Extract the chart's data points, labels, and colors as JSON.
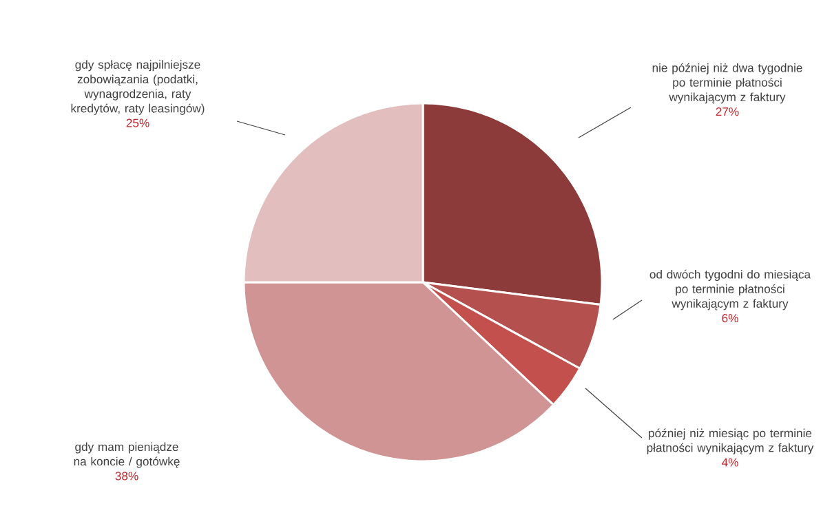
{
  "chart_data": {
    "type": "pie",
    "categories": [
      "nie później niż dwa tygodnie po terminie płatności wynikającym z faktury",
      "od dwóch tygodni do miesiąca po terminie płatności wynikającym z faktury",
      "później niż miesiąc po terminie płatności wynikającym z faktury",
      "gdy mam pieniądze na koncie / gotówkę",
      "gdy spłacę najpilniejsze zobowiązania (podatki, wynagrodzenia, raty kredytów, raty leasingów)"
    ],
    "values": [
      27,
      6,
      4,
      38,
      25
    ],
    "value_labels": [
      "27%",
      "6%",
      "4%",
      "38%",
      "25%"
    ],
    "colors": [
      "#8c3a3a",
      "#b4504e",
      "#c4504e",
      "#d09494",
      "#e2bebe"
    ]
  }
}
